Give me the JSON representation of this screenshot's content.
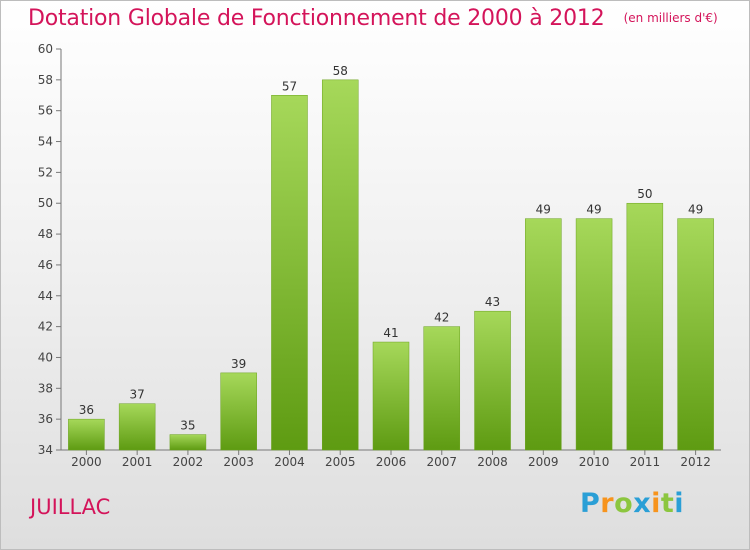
{
  "title": "Dotation Globale de Fonctionnement de 2000 à 2012",
  "subtitle": "(en milliers d'€)",
  "commune": "JUILLAC",
  "logo": {
    "letters": [
      "P",
      "r",
      "o",
      "x",
      "i",
      "t",
      "i"
    ],
    "colors": [
      "#2a9fd6",
      "#f7941d",
      "#8cc63f",
      "#2a9fd6",
      "#f7941d",
      "#8cc63f",
      "#2a9fd6"
    ]
  },
  "chart_data": {
    "type": "bar",
    "title": "Dotation Globale de Fonctionnement de 2000 à 2012",
    "subtitle": "(en milliers d'€)",
    "categories": [
      "2000",
      "2001",
      "2002",
      "2003",
      "2004",
      "2005",
      "2006",
      "2007",
      "2008",
      "2009",
      "2010",
      "2011",
      "2012"
    ],
    "values": [
      36,
      37,
      35,
      39,
      57,
      58,
      41,
      42,
      43,
      49,
      49,
      50,
      49
    ],
    "ylim": [
      34,
      60
    ],
    "yticks": [
      34,
      36,
      38,
      40,
      42,
      44,
      46,
      48,
      50,
      52,
      54,
      56,
      58,
      60
    ],
    "grid": false,
    "bar_color_top": "#a6d85a",
    "bar_color_bottom": "#5e9b12"
  }
}
